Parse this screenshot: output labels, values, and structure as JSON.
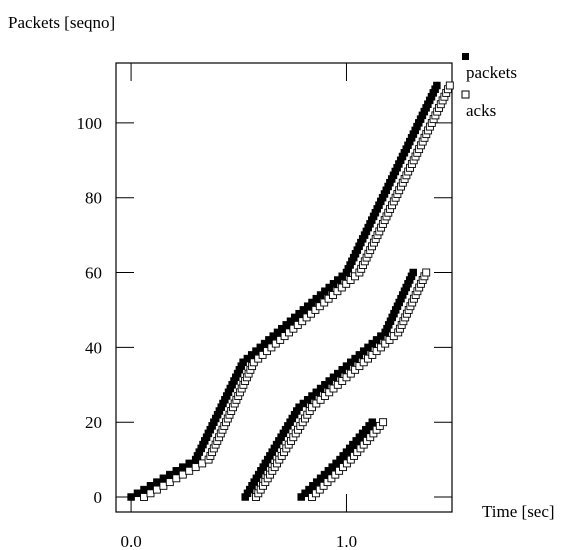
{
  "chart_data": {
    "type": "scatter",
    "ylabel": "Packets [seqno]",
    "xlabel": "Time [sec]",
    "xlim": [
      -0.07,
      1.49
    ],
    "ylim": [
      -4,
      116
    ],
    "x_ticks": [
      0.0,
      1.0
    ],
    "x_tick_labels": [
      "0.0",
      "1.0"
    ],
    "y_ticks": [
      0,
      20,
      40,
      60,
      80,
      100
    ],
    "y_tick_labels": [
      "0",
      "20",
      "40",
      "60",
      "80",
      "100"
    ],
    "legend_position": "top-right outside",
    "series": [
      {
        "name": "packets",
        "marker": "filled-square",
        "segments": [
          {
            "x": [
              0.0,
              0.3,
              0.52,
              1.0,
              1.42
            ],
            "y": [
              0,
              10,
              36,
              60,
              110
            ]
          },
          {
            "x": [
              0.53,
              0.78,
              1.18,
              1.31
            ],
            "y": [
              0,
              24,
              44,
              60
            ]
          },
          {
            "x": [
              0.79,
              0.97,
              1.12
            ],
            "y": [
              0,
              10,
              20
            ]
          }
        ]
      },
      {
        "name": "acks",
        "marker": "open-square",
        "segments": [
          {
            "x": [
              0.06,
              0.36,
              0.57,
              1.06,
              1.48
            ],
            "y": [
              0,
              10,
              36,
              60,
              110
            ]
          },
          {
            "x": [
              0.58,
              0.84,
              1.24,
              1.37
            ],
            "y": [
              0,
              24,
              44,
              60
            ]
          },
          {
            "x": [
              0.84,
              1.02,
              1.17
            ],
            "y": [
              0,
              10,
              20
            ]
          }
        ]
      }
    ]
  }
}
